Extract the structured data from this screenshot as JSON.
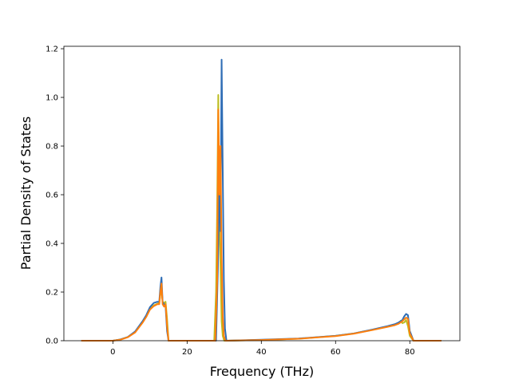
{
  "chart_data": {
    "type": "line",
    "xlabel": "Frequency (THz)",
    "ylabel": "Partial Density of States",
    "xlim": [
      -13.2,
      93.5
    ],
    "ylim": [
      0,
      1.21
    ],
    "xticks": [
      0,
      20,
      40,
      60,
      80
    ],
    "yticks": [
      0.0,
      0.2,
      0.4,
      0.6,
      0.8,
      1.0,
      1.2
    ],
    "xtick_labels": [
      "0",
      "20",
      "40",
      "60",
      "80"
    ],
    "ytick_labels": [
      "0.0",
      "0.2",
      "0.4",
      "0.6",
      "0.8",
      "1.0",
      "1.2"
    ],
    "grid": false,
    "legend": "none",
    "series": [
      {
        "color": "#bcbd22",
        "x": [
          -8.5,
          0,
          2,
          4,
          6,
          8,
          9,
          10,
          11,
          12,
          12.5,
          12.8,
          13.1,
          13.4,
          13.8,
          14.2,
          14.6,
          15,
          20,
          27.3,
          27.8,
          28.1,
          28.4,
          28.7,
          29,
          29.3,
          29.6,
          30,
          30.5,
          40,
          50,
          60,
          65,
          70,
          74,
          76,
          77,
          77.6,
          78,
          78.5,
          79,
          79.5,
          80,
          81,
          88.5
        ],
        "y": [
          0,
          0,
          0.005,
          0.015,
          0.035,
          0.075,
          0.1,
          0.13,
          0.145,
          0.152,
          0.155,
          0.19,
          0.21,
          0.16,
          0.155,
          0.16,
          0.09,
          0,
          0,
          0,
          0.2,
          0.55,
          1.01,
          0.5,
          0.3,
          0.08,
          0.02,
          0,
          0,
          0.003,
          0.008,
          0.02,
          0.03,
          0.045,
          0.058,
          0.065,
          0.072,
          0.082,
          0.072,
          0.075,
          0.085,
          0.06,
          0.02,
          0,
          0
        ]
      },
      {
        "color": "#2f6db5",
        "x": [
          -8.5,
          0,
          2,
          4,
          6,
          8,
          9,
          10,
          11,
          12,
          12.5,
          12.8,
          13.1,
          13.4,
          13.8,
          14.2,
          14.6,
          15,
          20,
          27.8,
          28.3,
          28.7,
          29,
          29.3,
          29.6,
          29.9,
          30.2,
          30.6,
          40,
          50,
          60,
          65,
          70,
          74,
          76,
          77,
          78,
          78.5,
          79,
          79.5,
          80,
          81,
          88.5
        ],
        "y": [
          0,
          0,
          0.005,
          0.015,
          0.038,
          0.08,
          0.105,
          0.138,
          0.155,
          0.16,
          0.16,
          0.22,
          0.26,
          0.16,
          0.15,
          0.14,
          0.04,
          0,
          0,
          0,
          0.3,
          0.65,
          0.45,
          1.155,
          0.7,
          0.25,
          0.05,
          0,
          0.004,
          0.009,
          0.02,
          0.03,
          0.046,
          0.06,
          0.068,
          0.075,
          0.085,
          0.1,
          0.11,
          0.105,
          0.04,
          0,
          0
        ]
      },
      {
        "color": "#ff7f0e",
        "x": [
          -8.5,
          0,
          2,
          4,
          6,
          8,
          9,
          10,
          11,
          12,
          12.5,
          12.8,
          13.1,
          13.4,
          13.8,
          14.2,
          14.6,
          15,
          20,
          27.6,
          28.1,
          28.4,
          28.7,
          29,
          29.3,
          29.6,
          29.9,
          30.3,
          40,
          50,
          60,
          65,
          70,
          74,
          76,
          77,
          78,
          78.5,
          79,
          79.5,
          80,
          81,
          88.5
        ],
        "y": [
          0,
          0,
          0.004,
          0.014,
          0.034,
          0.074,
          0.098,
          0.128,
          0.142,
          0.15,
          0.15,
          0.2,
          0.235,
          0.15,
          0.14,
          0.15,
          0.06,
          0,
          0,
          0,
          0.25,
          0.95,
          0.6,
          0.8,
          0.35,
          0.1,
          0.02,
          0,
          0.003,
          0.008,
          0.019,
          0.029,
          0.044,
          0.057,
          0.064,
          0.07,
          0.08,
          0.088,
          0.095,
          0.09,
          0.03,
          0,
          0
        ]
      }
    ]
  }
}
